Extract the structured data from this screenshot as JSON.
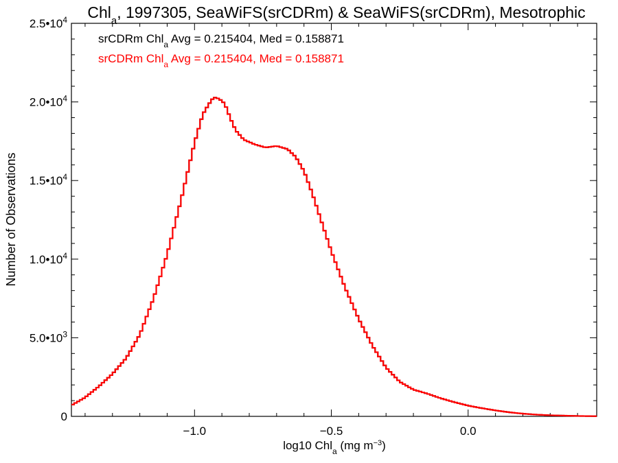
{
  "chart_data": {
    "type": "line",
    "title": {
      "prefix": "Chl",
      "sub": "a",
      "rest": ", 1997305, SeaWiFS(srCDRm) & SeaWiFS(srCDRm), Mesotrophic"
    },
    "xlabel": {
      "prefix": "log10 Chl",
      "sub": "a",
      "rest": " (mg m",
      "sup": "−3",
      "end": ")"
    },
    "ylabel": "Number of Observations",
    "xlim": [
      -1.45,
      0.47
    ],
    "ylim": [
      0,
      25000
    ],
    "x_ticks": [
      {
        "value": -1.0,
        "label": "−1.0"
      },
      {
        "value": -0.5,
        "label": "−0.5"
      },
      {
        "value": 0.0,
        "label": "0.0"
      }
    ],
    "y_ticks": [
      {
        "value": 0,
        "mant": "0",
        "exp": ""
      },
      {
        "value": 5000,
        "mant": "5.0•10",
        "exp": "3"
      },
      {
        "value": 10000,
        "mant": "1.0•10",
        "exp": "4"
      },
      {
        "value": 15000,
        "mant": "1.5•10",
        "exp": "4"
      },
      {
        "value": 20000,
        "mant": "2.0•10",
        "exp": "4"
      },
      {
        "value": 25000,
        "mant": "2.5•10",
        "exp": "4"
      }
    ],
    "legend_placement": "top-left",
    "series": [
      {
        "name": "srCDRm Chl_a Avg = 0.215404, Med = 0.158871",
        "legend": {
          "prefix": "srCDRm Chl",
          "sub": "a",
          "rest": " Avg = 0.215404, Med = 0.158871"
        },
        "color": "#000000",
        "points": [
          [
            -1.45,
            700
          ],
          [
            -1.4,
            1200
          ],
          [
            -1.35,
            1900
          ],
          [
            -1.3,
            2700
          ],
          [
            -1.25,
            3700
          ],
          [
            -1.2,
            5200
          ],
          [
            -1.15,
            7500
          ],
          [
            -1.1,
            10300
          ],
          [
            -1.05,
            13700
          ],
          [
            -1.0,
            17400
          ],
          [
            -0.97,
            19200
          ],
          [
            -0.95,
            19800
          ],
          [
            -0.93,
            20300
          ],
          [
            -0.91,
            20200
          ],
          [
            -0.89,
            19900
          ],
          [
            -0.87,
            19000
          ],
          [
            -0.85,
            18200
          ],
          [
            -0.82,
            17600
          ],
          [
            -0.78,
            17300
          ],
          [
            -0.74,
            17100
          ],
          [
            -0.7,
            17200
          ],
          [
            -0.66,
            17000
          ],
          [
            -0.63,
            16500
          ],
          [
            -0.6,
            15600
          ],
          [
            -0.57,
            14200
          ],
          [
            -0.54,
            12600
          ],
          [
            -0.5,
            10500
          ],
          [
            -0.45,
            8200
          ],
          [
            -0.4,
            6200
          ],
          [
            -0.35,
            4500
          ],
          [
            -0.3,
            3100
          ],
          [
            -0.25,
            2200
          ],
          [
            -0.2,
            1700
          ],
          [
            -0.15,
            1450
          ],
          [
            -0.1,
            1150
          ],
          [
            -0.05,
            900
          ],
          [
            0.0,
            680
          ],
          [
            0.05,
            520
          ],
          [
            0.1,
            380
          ],
          [
            0.15,
            260
          ],
          [
            0.2,
            170
          ],
          [
            0.25,
            110
          ],
          [
            0.3,
            70
          ],
          [
            0.35,
            45
          ],
          [
            0.4,
            25
          ],
          [
            0.47,
            10
          ]
        ]
      },
      {
        "name": "srCDRm Chl_a Avg = 0.215404, Med = 0.158871",
        "legend": {
          "prefix": "srCDRm Chl",
          "sub": "a",
          "rest": " Avg = 0.215404, Med = 0.158871"
        },
        "color": "#ff0000",
        "points": [
          [
            -1.45,
            700
          ],
          [
            -1.4,
            1200
          ],
          [
            -1.35,
            1900
          ],
          [
            -1.3,
            2700
          ],
          [
            -1.25,
            3700
          ],
          [
            -1.2,
            5200
          ],
          [
            -1.15,
            7500
          ],
          [
            -1.1,
            10300
          ],
          [
            -1.05,
            13700
          ],
          [
            -1.0,
            17400
          ],
          [
            -0.97,
            19200
          ],
          [
            -0.95,
            19800
          ],
          [
            -0.93,
            20300
          ],
          [
            -0.91,
            20200
          ],
          [
            -0.89,
            19900
          ],
          [
            -0.87,
            19000
          ],
          [
            -0.85,
            18200
          ],
          [
            -0.82,
            17600
          ],
          [
            -0.78,
            17300
          ],
          [
            -0.74,
            17100
          ],
          [
            -0.7,
            17200
          ],
          [
            -0.66,
            17000
          ],
          [
            -0.63,
            16500
          ],
          [
            -0.6,
            15600
          ],
          [
            -0.57,
            14200
          ],
          [
            -0.54,
            12600
          ],
          [
            -0.5,
            10500
          ],
          [
            -0.45,
            8200
          ],
          [
            -0.4,
            6200
          ],
          [
            -0.35,
            4500
          ],
          [
            -0.3,
            3100
          ],
          [
            -0.25,
            2200
          ],
          [
            -0.2,
            1700
          ],
          [
            -0.15,
            1450
          ],
          [
            -0.1,
            1150
          ],
          [
            -0.05,
            900
          ],
          [
            0.0,
            680
          ],
          [
            0.05,
            520
          ],
          [
            0.1,
            380
          ],
          [
            0.15,
            260
          ],
          [
            0.2,
            170
          ],
          [
            0.25,
            110
          ],
          [
            0.3,
            70
          ],
          [
            0.35,
            45
          ],
          [
            0.4,
            25
          ],
          [
            0.47,
            10
          ]
        ]
      }
    ]
  }
}
